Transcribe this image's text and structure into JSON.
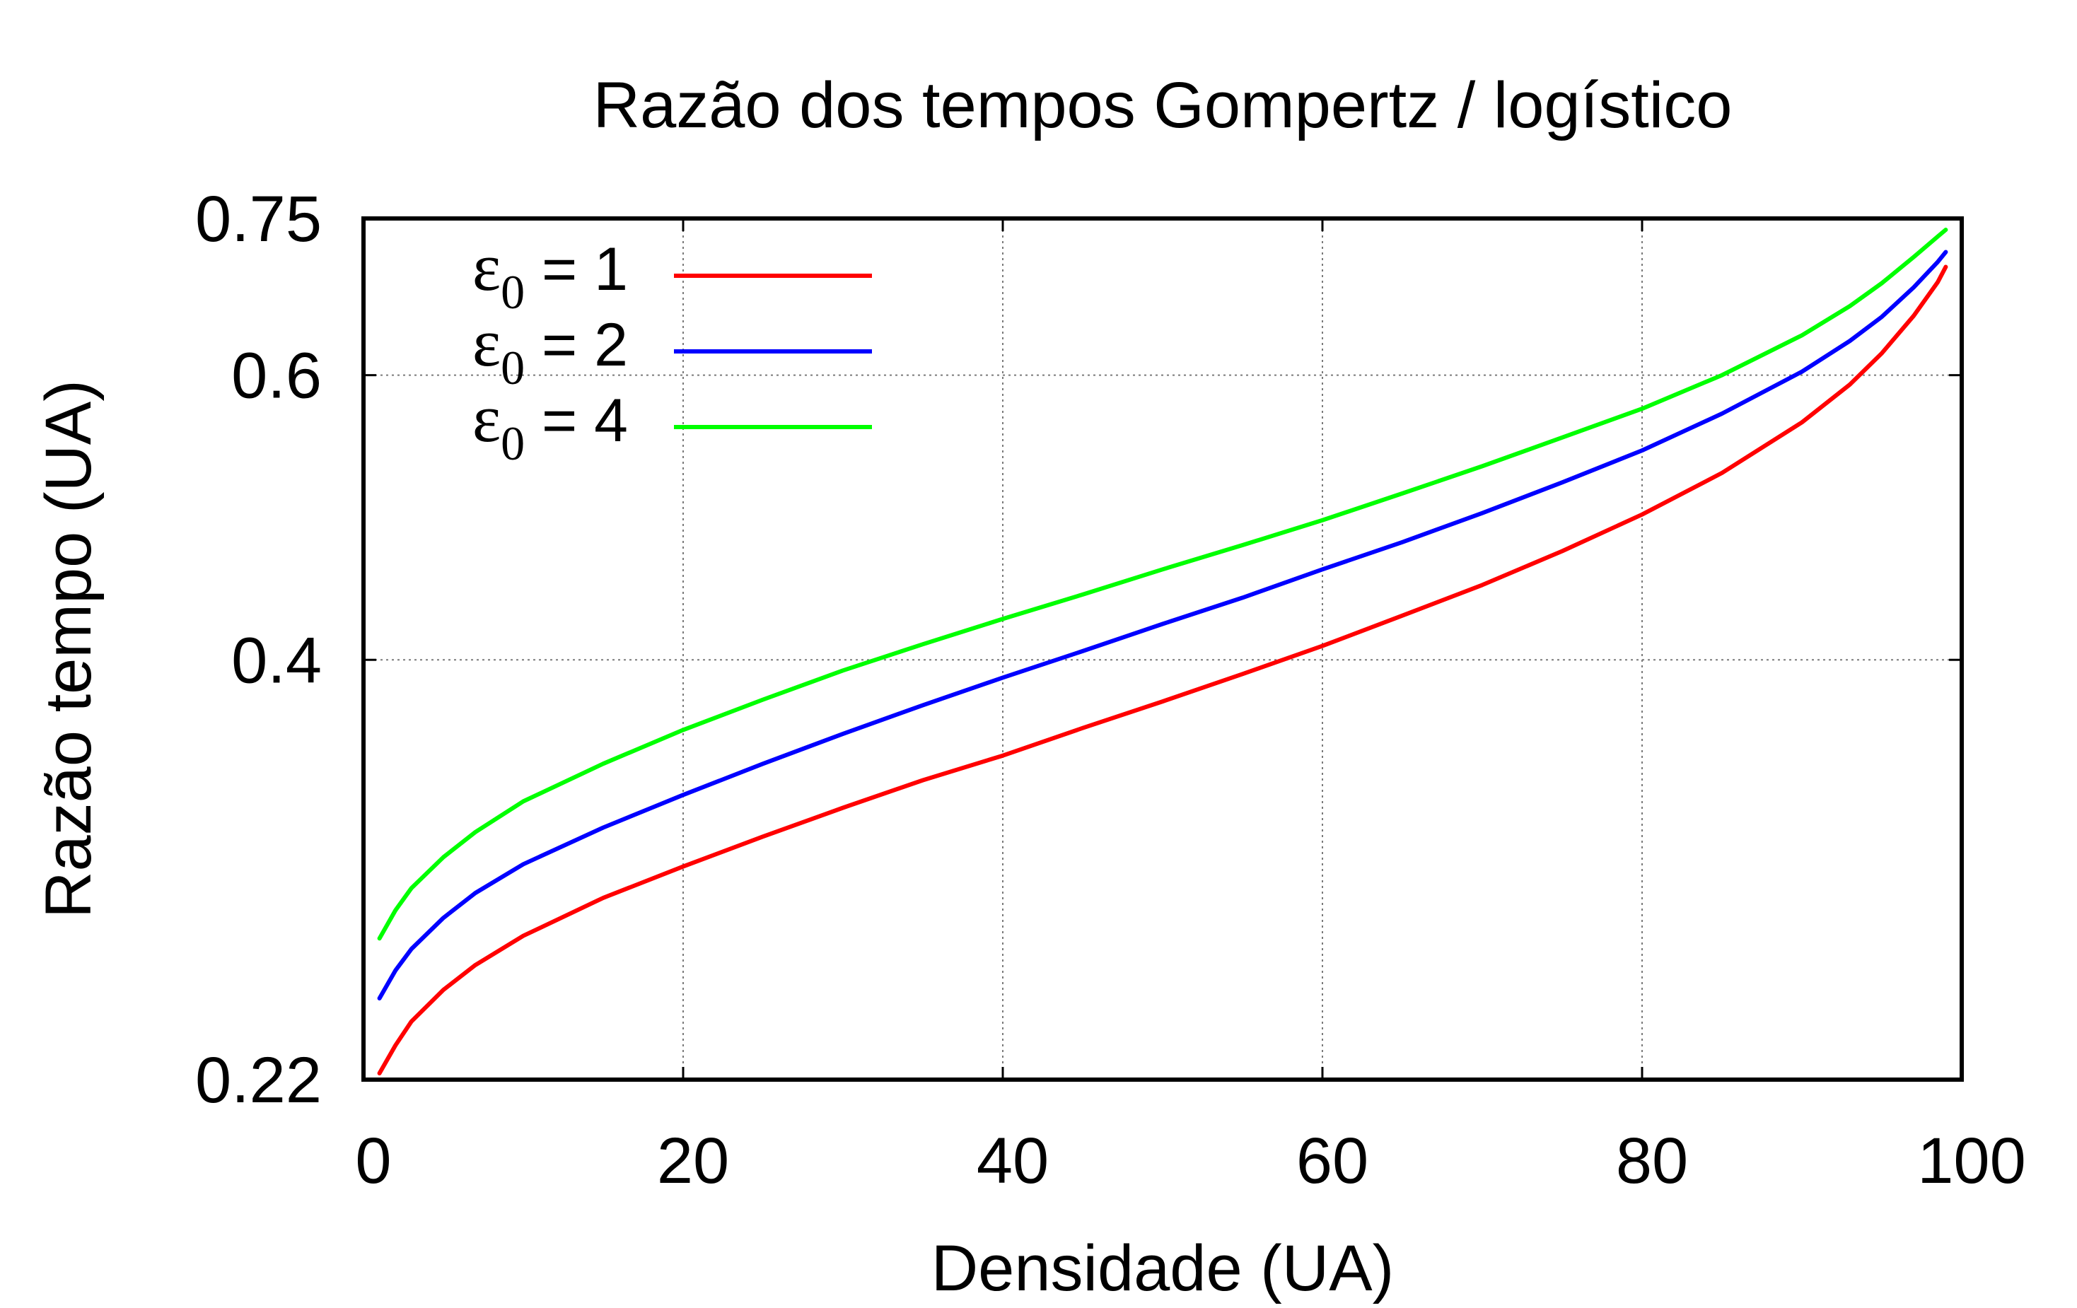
{
  "chart_data": {
    "type": "line",
    "title": "Razão dos tempos Gompertz / logístico",
    "xlabel": "Densidade (UA)",
    "ylabel": "Razão tempo (UA)",
    "xlim": [
      0,
      100
    ],
    "ylim": [
      0.22,
      0.75
    ],
    "x_ticks": [
      "0",
      "20",
      "40",
      "60",
      "80",
      "100"
    ],
    "y_ticks": [
      "0.22",
      "0.4",
      "0.6",
      "0.75"
    ],
    "y_scale": "log",
    "grid": true,
    "legend_position": "top-left",
    "x": [
      1,
      2,
      3,
      5,
      7,
      10,
      15,
      20,
      25,
      30,
      35,
      40,
      45,
      50,
      55,
      60,
      65,
      70,
      75,
      80,
      85,
      90,
      93,
      95,
      97,
      98.5,
      99
    ],
    "series": [
      {
        "name": "1",
        "color": "#ff0000",
        "values": [
          0.222,
          0.231,
          0.239,
          0.25,
          0.259,
          0.27,
          0.285,
          0.298,
          0.311,
          0.324,
          0.337,
          0.349,
          0.363,
          0.377,
          0.392,
          0.408,
          0.426,
          0.445,
          0.467,
          0.492,
          0.522,
          0.561,
          0.592,
          0.619,
          0.653,
          0.685,
          0.7
        ]
      },
      {
        "name": "2",
        "color": "#0000ff",
        "values": [
          0.247,
          0.257,
          0.265,
          0.277,
          0.287,
          0.299,
          0.315,
          0.33,
          0.345,
          0.36,
          0.375,
          0.39,
          0.405,
          0.421,
          0.437,
          0.455,
          0.473,
          0.493,
          0.515,
          0.539,
          0.568,
          0.603,
          0.63,
          0.652,
          0.68,
          0.705,
          0.715
        ]
      },
      {
        "name": "4",
        "color": "#00ff00",
        "values": [
          0.269,
          0.28,
          0.289,
          0.302,
          0.313,
          0.327,
          0.345,
          0.362,
          0.378,
          0.394,
          0.409,
          0.424,
          0.439,
          0.455,
          0.471,
          0.488,
          0.507,
          0.527,
          0.549,
          0.572,
          0.6,
          0.635,
          0.662,
          0.684,
          0.71,
          0.731,
          0.738
        ]
      }
    ]
  },
  "legend": {
    "symbol": "ε",
    "subscript": "0",
    "equals": "=",
    "entries": [
      {
        "value": "1",
        "color": "#ff0000"
      },
      {
        "value": "2",
        "color": "#0000ff"
      },
      {
        "value": "4",
        "color": "#00ff00"
      }
    ]
  }
}
